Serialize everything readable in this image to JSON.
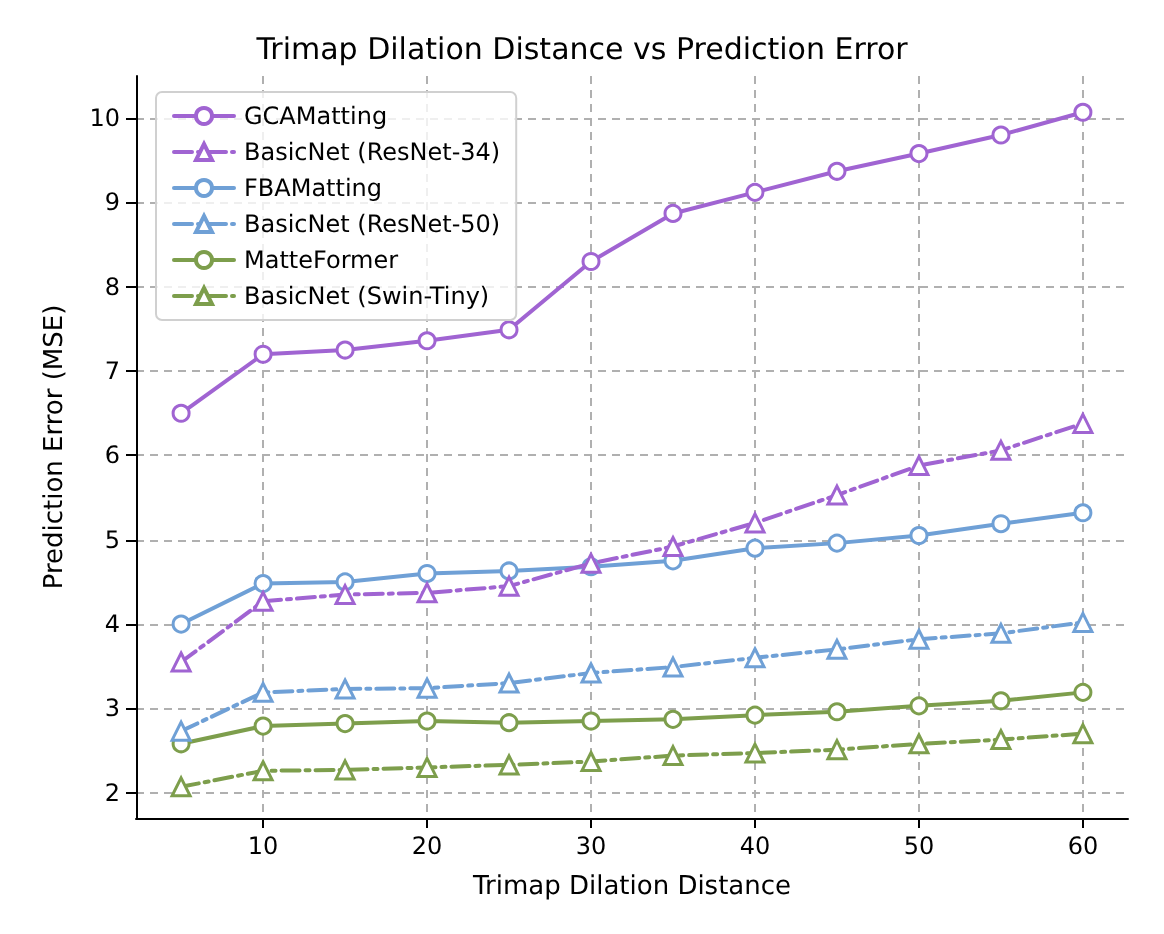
{
  "chart_data": {
    "type": "line",
    "title": "Trimap Dilation Distance vs Prediction Error",
    "xlabel": "Trimap Dilation Distance",
    "ylabel": "Prediction Error (MSE)",
    "x": [
      5,
      10,
      15,
      20,
      25,
      30,
      35,
      40,
      45,
      50,
      55,
      60
    ],
    "series": [
      {
        "name": "GCAMatting",
        "color": "#a064d2",
        "marker": "circle",
        "line_style": "solid",
        "values": [
          6.5,
          7.2,
          7.25,
          7.36,
          7.49,
          8.3,
          8.87,
          9.12,
          9.37,
          9.58,
          9.8,
          10.07
        ]
      },
      {
        "name": "BasicNet (ResNet-34)",
        "color": "#a064d2",
        "marker": "triangle",
        "line_style": "dashdot",
        "values": [
          3.55,
          4.27,
          4.35,
          4.37,
          4.45,
          4.72,
          4.92,
          5.2,
          5.53,
          5.88,
          6.06,
          6.38
        ]
      },
      {
        "name": "FBAMatting",
        "color": "#6fa0d6",
        "marker": "circle",
        "line_style": "solid",
        "values": [
          4.0,
          4.48,
          4.5,
          4.6,
          4.63,
          4.68,
          4.75,
          4.9,
          4.96,
          5.05,
          5.19,
          5.32
        ]
      },
      {
        "name": "BasicNet (ResNet-50)",
        "color": "#6fa0d6",
        "marker": "triangle",
        "line_style": "dashdot",
        "values": [
          2.73,
          3.19,
          3.23,
          3.24,
          3.3,
          3.42,
          3.49,
          3.6,
          3.7,
          3.82,
          3.89,
          4.02
        ]
      },
      {
        "name": "MatteFormer",
        "color": "#7d9e4c",
        "marker": "circle",
        "line_style": "solid",
        "values": [
          2.58,
          2.79,
          2.82,
          2.85,
          2.83,
          2.85,
          2.87,
          2.92,
          2.96,
          3.03,
          3.09,
          3.19
        ]
      },
      {
        "name": "BasicNet (Swin-Tiny)",
        "color": "#7d9e4c",
        "marker": "triangle",
        "line_style": "dashdot",
        "values": [
          2.07,
          2.26,
          2.27,
          2.3,
          2.33,
          2.37,
          2.44,
          2.47,
          2.51,
          2.58,
          2.63,
          2.7
        ]
      }
    ],
    "xlim": [
      2.25,
      62.75
    ],
    "ylim": [
      1.7,
      10.5
    ],
    "xticks": [
      10,
      20,
      30,
      40,
      50,
      60
    ],
    "yticks": [
      2,
      3,
      4,
      5,
      6,
      7,
      8,
      9,
      10
    ],
    "grid": true,
    "legend": "top left"
  }
}
